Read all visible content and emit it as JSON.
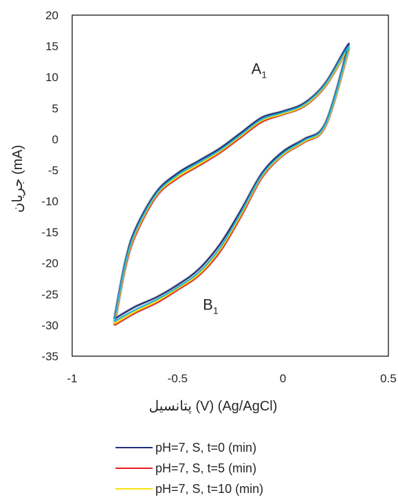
{
  "chart_data": {
    "type": "line",
    "title": "",
    "xlabel": "پتانسیل (V) (Ag/AgCl)",
    "ylabel": "جریان (mA)",
    "xlim": [
      -1,
      0.5
    ],
    "ylim": [
      -35,
      20
    ],
    "xticks": [
      "-1",
      "-0.5",
      "0",
      "0.5"
    ],
    "yticks": [
      "20",
      "15",
      "10",
      "5",
      "0",
      "-5",
      "-10",
      "-15",
      "-20",
      "-25",
      "-30",
      "-35"
    ],
    "grid": false,
    "legend_position": "bottom",
    "annotations": [
      {
        "label": "A",
        "sub": "1",
        "x": -0.15,
        "y": 10.5
      },
      {
        "label": "B",
        "sub": "1",
        "x": -0.38,
        "y": -27.5
      }
    ],
    "colors": {
      "series_0": "#1f2f7a",
      "series_1": "#e8191c",
      "series_2": "#f5e20a",
      "extra_trace": "#28b4d6",
      "outline": "#a6a6a6"
    },
    "series": [
      {
        "name": "pH=7, S, t=0  (min)",
        "x": [
          -0.8,
          -0.75,
          -0.7,
          -0.6,
          -0.5,
          -0.4,
          -0.3,
          -0.2,
          -0.1,
          0.0,
          0.1,
          0.2,
          0.3,
          0.3,
          0.2,
          0.1,
          0.0,
          -0.1,
          -0.2,
          -0.3,
          -0.4,
          -0.5,
          -0.6,
          -0.7,
          -0.8
        ],
        "y": [
          -29.0,
          -20.0,
          -14.5,
          -8.5,
          -5.5,
          -3.5,
          -1.5,
          1.0,
          3.5,
          4.5,
          5.8,
          9.0,
          14.8,
          13.8,
          2.5,
          0.0,
          -2.0,
          -5.5,
          -11.5,
          -17.0,
          -21.0,
          -23.5,
          -25.5,
          -27.0,
          -29.0
        ]
      },
      {
        "name": "pH=7, S, t=5  (min)",
        "x": [
          -0.8,
          -0.75,
          -0.7,
          -0.6,
          -0.5,
          -0.4,
          -0.3,
          -0.2,
          -0.1,
          0.0,
          0.1,
          0.2,
          0.3,
          0.3,
          0.2,
          0.1,
          0.0,
          -0.1,
          -0.2,
          -0.3,
          -0.4,
          -0.5,
          -0.6,
          -0.7,
          -0.8
        ],
        "y": [
          -30.0,
          -21.0,
          -15.5,
          -9.2,
          -6.3,
          -4.3,
          -2.2,
          0.3,
          2.8,
          4.0,
          5.3,
          8.5,
          14.0,
          13.0,
          2.0,
          -0.5,
          -2.6,
          -6.2,
          -12.5,
          -18.2,
          -22.0,
          -24.3,
          -26.4,
          -28.0,
          -30.0
        ]
      },
      {
        "name": "pH=7, S, t=10  (min)",
        "x": [
          -0.8,
          -0.75,
          -0.7,
          -0.6,
          -0.5,
          -0.4,
          -0.3,
          -0.2,
          -0.1,
          0.0,
          0.1,
          0.2,
          0.3,
          0.3,
          0.2,
          0.1,
          0.0,
          -0.1,
          -0.2,
          -0.3,
          -0.4,
          -0.5,
          -0.6,
          -0.7,
          -0.8
        ],
        "y": [
          -29.8,
          -20.7,
          -15.2,
          -9.0,
          -6.1,
          -4.1,
          -2.0,
          0.5,
          3.0,
          4.1,
          5.4,
          8.6,
          14.1,
          13.1,
          2.1,
          -0.4,
          -2.5,
          -6.0,
          -12.2,
          -17.9,
          -21.8,
          -24.1,
          -26.2,
          -27.8,
          -29.8
        ]
      }
    ],
    "extra_traces": [
      {
        "x": [
          -0.8,
          -0.75,
          -0.7,
          -0.6,
          -0.5,
          -0.4,
          -0.3,
          -0.2,
          -0.1,
          0.0,
          0.1,
          0.2,
          0.3,
          0.3,
          0.2,
          0.1,
          0.0,
          -0.1,
          -0.2,
          -0.3,
          -0.4,
          -0.5,
          -0.6,
          -0.7,
          -0.8
        ],
        "y": [
          -29.4,
          -20.4,
          -14.9,
          -8.8,
          -5.8,
          -3.8,
          -1.8,
          0.7,
          3.2,
          4.3,
          5.6,
          8.8,
          14.4,
          13.4,
          2.3,
          -0.2,
          -2.3,
          -5.8,
          -11.9,
          -17.6,
          -21.5,
          -23.9,
          -25.9,
          -27.5,
          -29.4
        ]
      }
    ]
  }
}
